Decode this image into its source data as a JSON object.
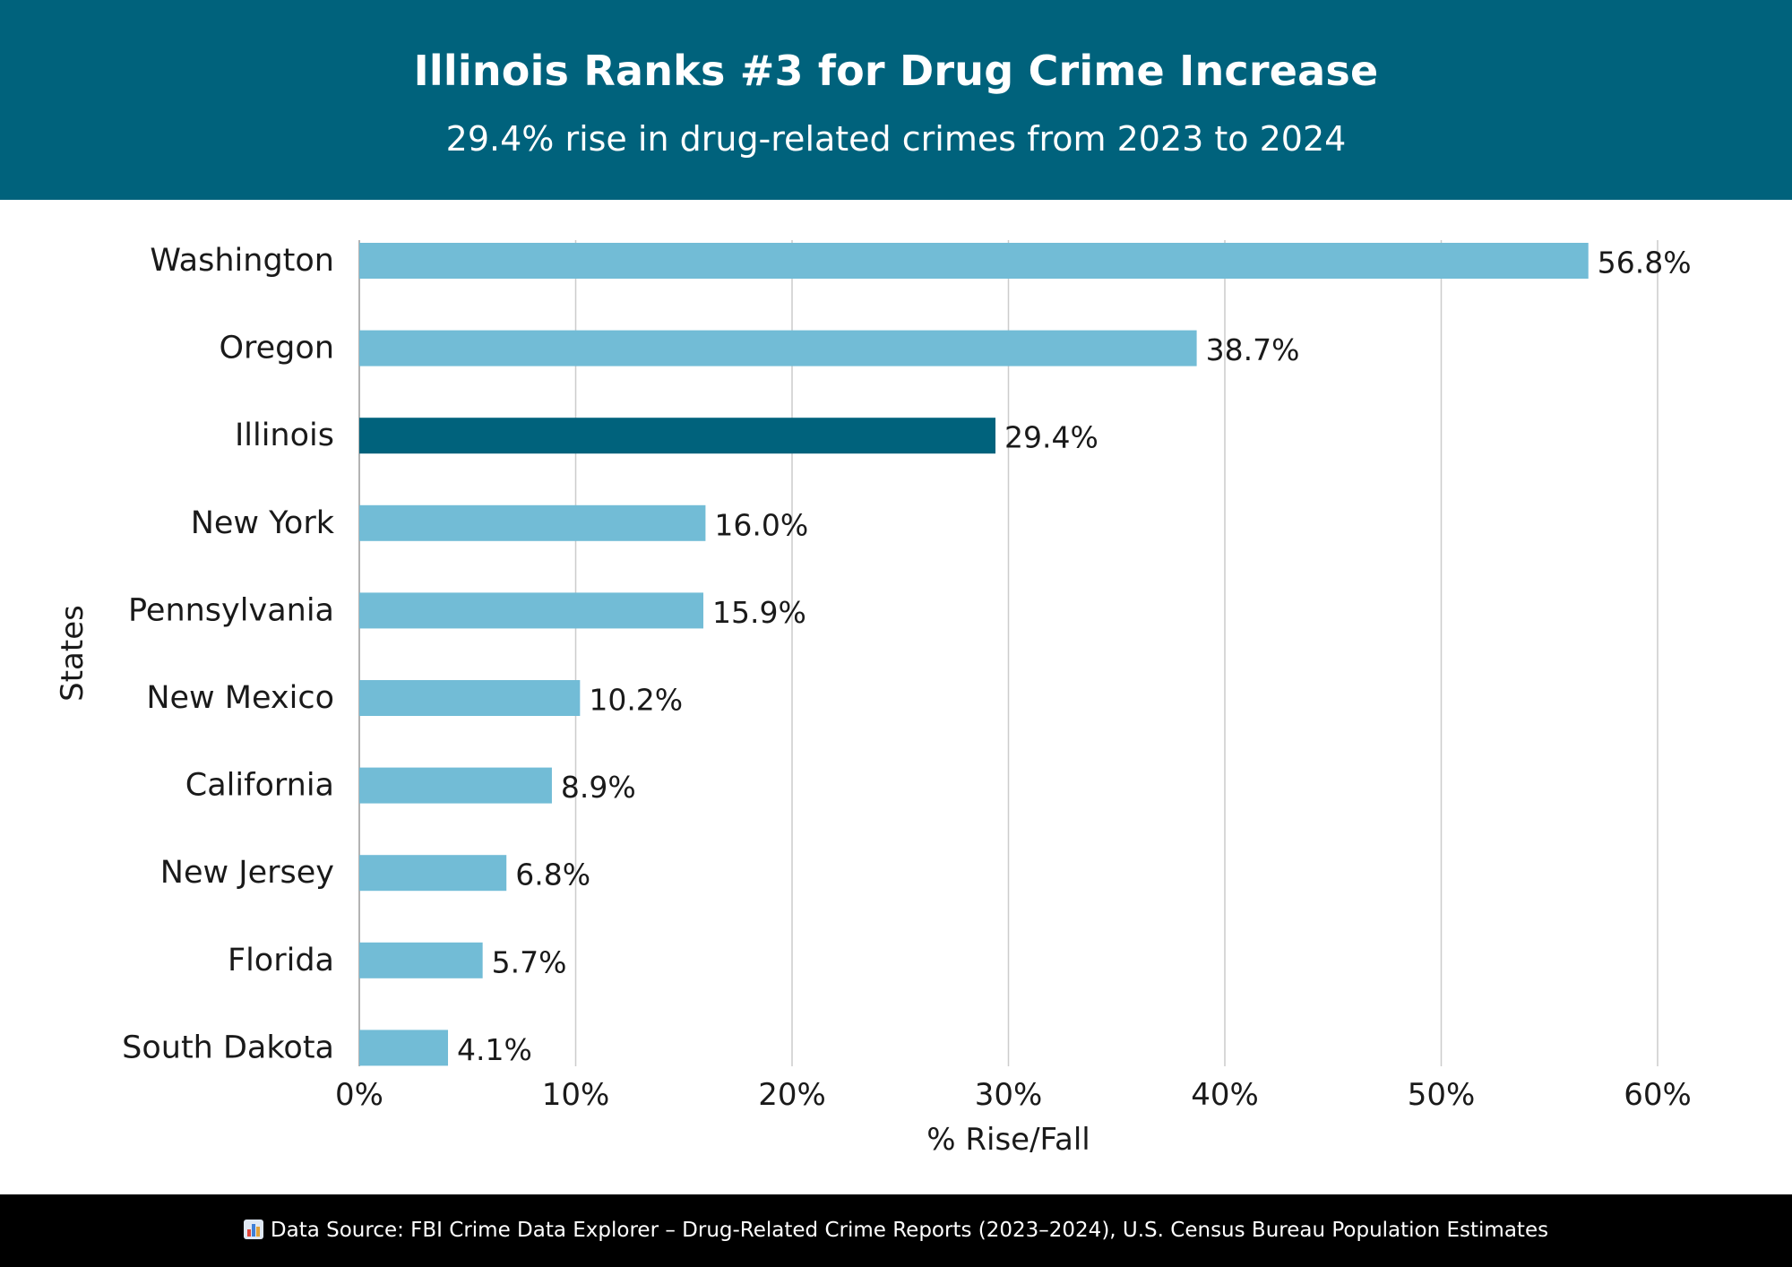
{
  "header": {
    "title": "Illinois Ranks #3 for Drug Crime Increase",
    "subtitle": "29.4% rise in drug-related crimes from 2023 to 2024"
  },
  "footer": {
    "icon": "bar-chart-icon",
    "source_text": "Data Source: FBI Crime Data Explorer – Drug-Related Crime Reports (2023–2024), U.S. Census Bureau Population Estimates"
  },
  "colors": {
    "header_bg": "#00627c",
    "bar_default": "#72bcd6",
    "bar_highlight": "#00627c",
    "gridline": "#cccccc",
    "footer_bg": "#000000"
  },
  "chart_data": {
    "type": "bar",
    "orientation": "horizontal",
    "xlabel": "% Rise/Fall",
    "ylabel": "States",
    "xlim": [
      0,
      60
    ],
    "xticks": [
      0,
      10,
      20,
      30,
      40,
      50,
      60
    ],
    "xtick_labels": [
      "0%",
      "10%",
      "20%",
      "30%",
      "40%",
      "50%",
      "60%"
    ],
    "grid": "vertical",
    "highlight": "Illinois",
    "categories": [
      "Washington",
      "Oregon",
      "Illinois",
      "New York",
      "Pennsylvania",
      "New Mexico",
      "California",
      "New Jersey",
      "Florida",
      "South Dakota"
    ],
    "values": [
      56.8,
      38.7,
      29.4,
      16.0,
      15.9,
      10.2,
      8.9,
      6.8,
      5.7,
      4.1
    ],
    "value_labels": [
      "56.8%",
      "38.7%",
      "29.4%",
      "16.0%",
      "15.9%",
      "10.2%",
      "8.9%",
      "6.8%",
      "5.7%",
      "4.1%"
    ]
  }
}
